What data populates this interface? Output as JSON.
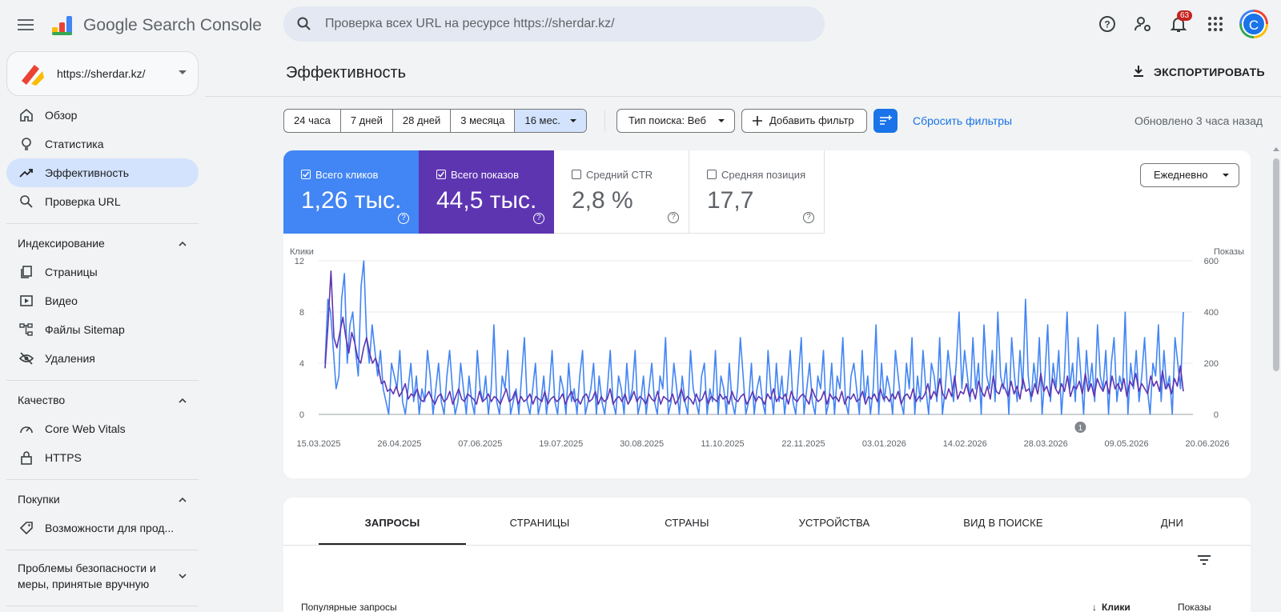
{
  "app": {
    "brand": "Google Search Console",
    "search_placeholder": "Проверка всех URL на ресурсе https://sherdar.kz/",
    "notification_count": "63",
    "avatar_letter": "C"
  },
  "property": {
    "label": "https://sherdar.kz/"
  },
  "sidebar": {
    "items": [
      {
        "label": "Обзор",
        "icon": "home-icon"
      },
      {
        "label": "Статистика",
        "icon": "lightbulb-icon"
      },
      {
        "label": "Эффективность",
        "icon": "trending-up-icon",
        "active": true
      },
      {
        "label": "Проверка URL",
        "icon": "search-icon"
      }
    ],
    "indexing": {
      "title": "Индексирование",
      "items": [
        {
          "label": "Страницы",
          "icon": "pages-icon"
        },
        {
          "label": "Видео",
          "icon": "video-icon"
        },
        {
          "label": "Файлы Sitemap",
          "icon": "sitemap-icon"
        },
        {
          "label": "Удаления",
          "icon": "removals-icon"
        }
      ]
    },
    "quality": {
      "title": "Качество",
      "items": [
        {
          "label": "Core Web Vitals",
          "icon": "speed-icon"
        },
        {
          "label": "HTTPS",
          "icon": "lock-icon"
        }
      ]
    },
    "shopping": {
      "title": "Покупки",
      "items": [
        {
          "label": "Возможности для прод...",
          "icon": "tag-icon"
        }
      ]
    },
    "security": {
      "title_line1": "Проблемы безопасности и",
      "title_line2": "меры, принятые вручную"
    }
  },
  "main": {
    "title": "Эффективность",
    "export_label": "ЭКСПОРТИРОВАТЬ",
    "date_ranges": [
      "24 часа",
      "7 дней",
      "28 дней",
      "3 месяца",
      "16 мес."
    ],
    "selected_range": "16 мес.",
    "search_type": "Тип поиска: Веб",
    "add_filter": "Добавить фильтр",
    "reset_filters": "Сбросить фильтры",
    "updated": "Обновлено 3 часа назад",
    "granularity": "Ежедневно"
  },
  "metrics": {
    "clicks": {
      "title": "Всего кликов",
      "value": "1,26 тыс.",
      "checked": true,
      "color": "#4285f4"
    },
    "impressions": {
      "title": "Всего показов",
      "value": "44,5 тыс.",
      "checked": true,
      "color": "#5e35b1"
    },
    "ctr": {
      "title": "Средний CTR",
      "value": "2,8 %",
      "checked": false
    },
    "position": {
      "title": "Средняя позиция",
      "value": "17,7",
      "checked": false
    }
  },
  "chart_data": {
    "type": "line",
    "left_axis_label": "Клики",
    "right_axis_label": "Показы",
    "left_ticks": [
      "12",
      "8",
      "4",
      "0"
    ],
    "right_ticks": [
      "600",
      "400",
      "200",
      "0"
    ],
    "ylim_left": [
      0,
      12
    ],
    "ylim_right": [
      0,
      600
    ],
    "x_tick_labels": [
      "15.03.2025",
      "26.04.2025",
      "07.06.2025",
      "19.07.2025",
      "30.08.2025",
      "11.10.2025",
      "22.11.2025",
      "03.01.2026",
      "14.02.2026",
      "28.03.2026",
      "09.05.2026",
      "20.06.2026"
    ],
    "annotation_label": "1",
    "annotation_date": "2026-04-15",
    "grid": true,
    "series": [
      {
        "name": "Всего кликов",
        "axis": "left",
        "color": "#4285f4",
        "values": [
          4,
          9,
          8,
          5,
          2,
          3,
          9,
          11,
          4,
          7,
          8,
          5,
          3,
          10,
          12,
          6,
          4,
          7,
          5,
          3,
          5,
          2,
          1,
          0,
          4,
          3,
          2,
          5,
          1,
          0,
          2,
          4,
          1,
          3,
          0,
          2,
          1,
          5,
          3,
          0,
          2,
          4,
          1,
          0,
          3,
          5,
          2,
          0,
          1,
          4,
          2,
          0,
          3,
          1,
          0,
          5,
          2,
          1,
          3,
          0,
          2,
          7,
          1,
          0,
          3,
          2,
          5,
          0,
          1,
          2,
          0,
          3,
          6,
          1,
          0,
          2,
          4,
          0,
          1,
          3,
          0,
          2,
          5,
          1,
          0,
          3,
          2,
          0,
          4,
          1,
          2,
          0,
          3,
          5,
          0,
          1,
          2,
          4,
          0,
          3,
          1,
          0,
          2,
          5,
          1,
          0,
          3,
          2,
          0,
          4,
          1,
          2,
          5,
          0,
          1,
          3,
          0,
          2,
          4,
          1,
          0,
          3,
          2,
          6,
          0,
          1,
          4,
          2,
          0,
          3,
          1,
          0,
          5,
          2,
          1,
          0,
          3,
          4,
          0,
          2,
          1,
          5,
          0,
          3,
          2,
          0,
          4,
          1,
          0,
          2,
          6,
          3,
          0,
          1,
          4,
          0,
          2,
          3,
          1,
          0,
          5,
          2,
          0,
          4,
          1,
          3,
          0,
          2,
          5,
          1,
          0,
          3,
          6,
          0,
          2,
          4,
          1,
          0,
          3,
          2,
          5,
          0,
          1,
          4,
          0,
          3,
          2,
          6,
          1,
          0,
          3,
          4,
          2,
          0,
          5,
          1,
          3,
          0,
          2,
          7,
          0,
          4,
          1,
          3,
          2,
          0,
          5,
          3,
          1,
          0,
          4,
          2,
          6,
          0,
          3,
          1,
          5,
          2,
          0,
          4,
          3,
          1,
          6,
          0,
          2,
          5,
          3,
          1,
          4,
          8,
          2,
          5,
          3,
          1,
          6,
          2,
          4,
          0,
          7,
          3,
          2,
          5,
          1,
          8,
          3,
          2,
          4,
          0,
          6,
          3,
          1,
          5,
          2,
          9,
          3,
          1,
          4,
          2,
          6,
          0,
          3,
          7,
          1,
          4,
          2,
          5,
          0,
          3,
          8,
          2,
          4,
          1,
          6,
          3,
          0,
          5,
          2,
          4,
          1,
          7,
          3,
          2,
          5,
          0,
          4,
          6,
          1,
          3,
          2,
          8,
          0,
          4,
          2,
          5,
          1,
          3,
          6,
          2,
          0,
          4,
          3,
          7,
          1,
          5,
          2,
          3,
          0,
          6,
          4,
          2,
          8
        ]
      },
      {
        "name": "Всего показов",
        "axis": "right",
        "color": "#5e35b1",
        "values": [
          180,
          350,
          560,
          300,
          260,
          320,
          380,
          300,
          240,
          320,
          280,
          220,
          200,
          260,
          300,
          240,
          200,
          220,
          180,
          120,
          130,
          90,
          100,
          80,
          110,
          70,
          90,
          120,
          60,
          80,
          70,
          100,
          60,
          50,
          70,
          90,
          60,
          40,
          70,
          80,
          50,
          60,
          90,
          40,
          70,
          100,
          60,
          50,
          80,
          70,
          60,
          40,
          90,
          50,
          60,
          80,
          50,
          70,
          60,
          40,
          70,
          100,
          50,
          60,
          90,
          40,
          70,
          50,
          60,
          80,
          40,
          70,
          60,
          50,
          90,
          40,
          60,
          70,
          50,
          60,
          80,
          40,
          70,
          90,
          50,
          60,
          40,
          70,
          80,
          50,
          60,
          90,
          40,
          70,
          50,
          60,
          100,
          40,
          60,
          70,
          50,
          80,
          40,
          60,
          90,
          50,
          70,
          60,
          40,
          80,
          60,
          50,
          90,
          40,
          70,
          60,
          50,
          80,
          40,
          60,
          100,
          50,
          70,
          60,
          40,
          80,
          50,
          60,
          90,
          40,
          70,
          60,
          50,
          80,
          60,
          70,
          40,
          90,
          60,
          50,
          70,
          80,
          40,
          60,
          90,
          50,
          70,
          60,
          40,
          80,
          60,
          100,
          50,
          70,
          60,
          80,
          40,
          90,
          60,
          50,
          70,
          80,
          60,
          40,
          100,
          70,
          50,
          60,
          90,
          40,
          80,
          60,
          70,
          50,
          90,
          40,
          70,
          60,
          80,
          50,
          60,
          90,
          40,
          70,
          60,
          80,
          50,
          100,
          60,
          70,
          50,
          80,
          60,
          90,
          40,
          70,
          80,
          60,
          100,
          50,
          70,
          60,
          80,
          120,
          60,
          90,
          70,
          140,
          80,
          60,
          100,
          70,
          150,
          60,
          90,
          80,
          120,
          70,
          100,
          60,
          130,
          90,
          70,
          110,
          60,
          150,
          90,
          80,
          120,
          100,
          70,
          130,
          80,
          110,
          60,
          140,
          90,
          100,
          70,
          120,
          80,
          160,
          90,
          110,
          70,
          140,
          100,
          80,
          120,
          90,
          150,
          70,
          110,
          100,
          130,
          80,
          160,
          90,
          120,
          70,
          140,
          110,
          90,
          130,
          80,
          150,
          100,
          120,
          90,
          140,
          70,
          130,
          110,
          160,
          90,
          120,
          100,
          80,
          150,
          110,
          130,
          90,
          170,
          100,
          120,
          80,
          140,
          110,
          190,
          90
        ]
      }
    ]
  },
  "table": {
    "tabs": [
      "ЗАПРОСЫ",
      "СТРАНИЦЫ",
      "СТРАНЫ",
      "УСТРОЙСТВА",
      "ВИД В ПОИСКЕ",
      "ДНИ"
    ],
    "active_tab": "ЗАПРОСЫ",
    "columns": {
      "query": "Популярные запросы",
      "clicks": "Клики",
      "impressions": "Показы"
    },
    "sort_indicator": "↓"
  },
  "colors": {
    "accent": "#1a73e8",
    "active_nav": "#d3e3fd"
  }
}
